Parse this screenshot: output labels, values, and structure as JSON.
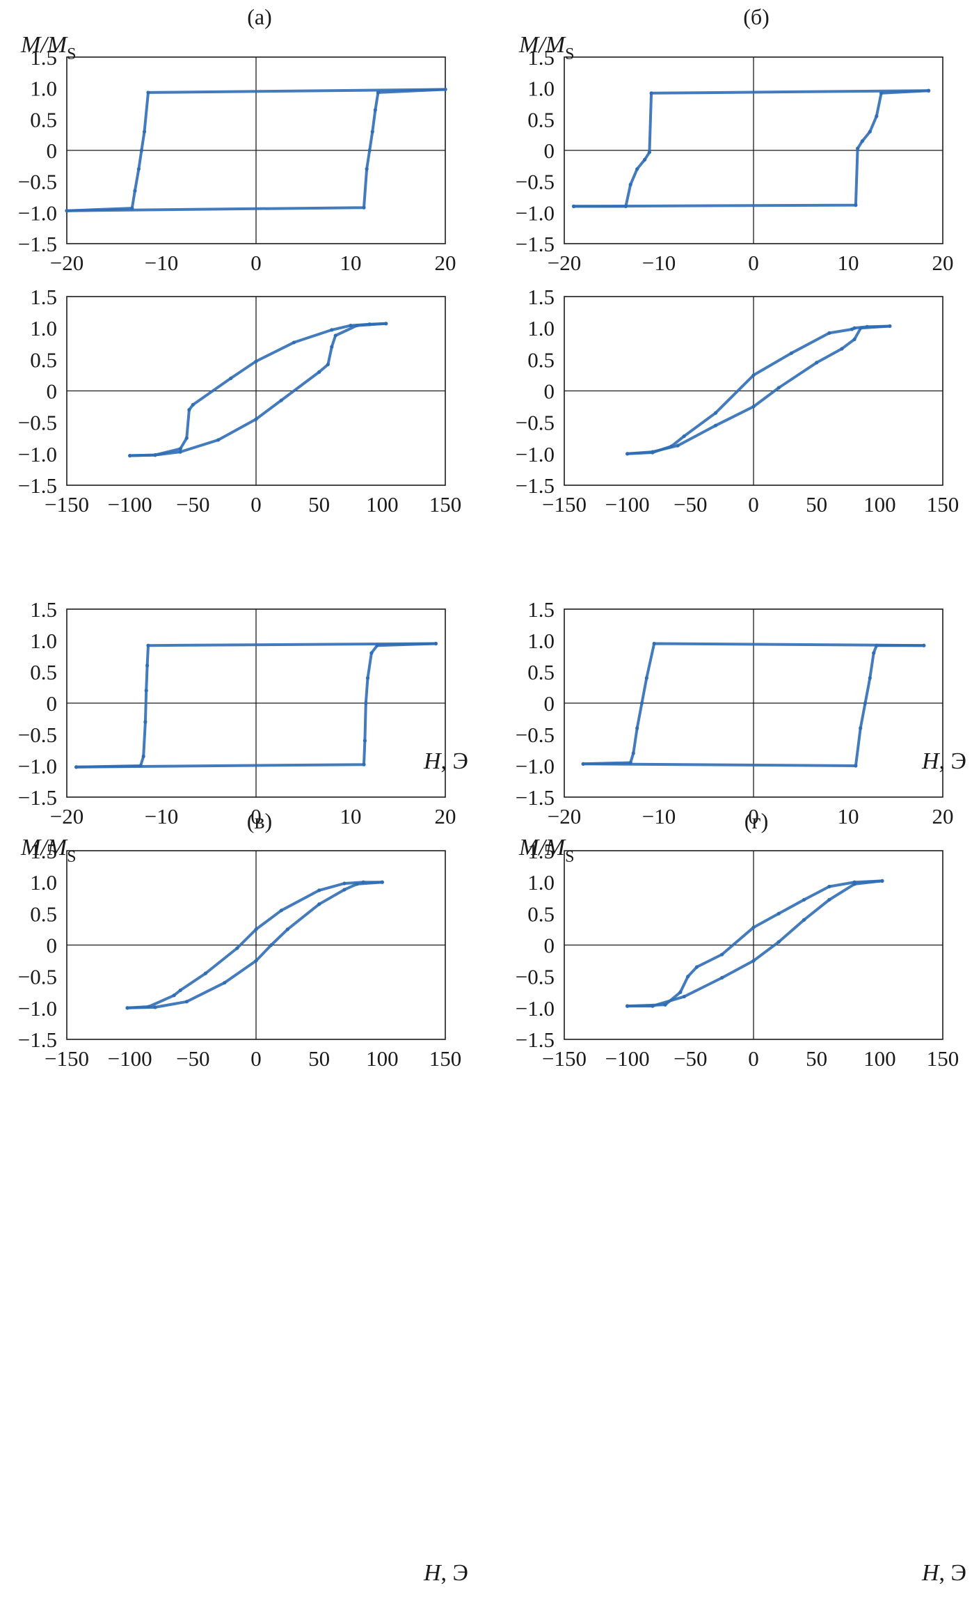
{
  "figure": {
    "panel_labels": [
      "(а)",
      "(б)",
      "(в)",
      "(г)"
    ],
    "y_title_main": "M/M",
    "y_title_sub": "S",
    "x_title_main": "H",
    "x_title_unit": ", Э",
    "series_color": "#2f6db5"
  },
  "chart_data": [
    {
      "id": "a-small",
      "type": "line",
      "panel": "(а)",
      "xlim": [
        -20,
        20
      ],
      "ylim": [
        -1.5,
        1.5
      ],
      "xticks": [
        -20,
        -10,
        0,
        10,
        20
      ],
      "xtick_labels": [
        "−20",
        "−10",
        "0",
        "10",
        "20"
      ],
      "yticks": [
        1.5,
        1.0,
        0.5,
        0,
        -0.5,
        -1.0,
        -1.5
      ],
      "ytick_labels": [
        "1.5",
        "1.0",
        "0.5",
        "0",
        "−0.5",
        "−1.0",
        "−1.5"
      ],
      "grid": false,
      "series": [
        {
          "x": [
            -20,
            -13.1,
            -12.8,
            -12.4,
            -12.1,
            -11.8,
            -11.4,
            20
          ],
          "y": [
            -0.97,
            -0.93,
            -0.65,
            -0.3,
            0.0,
            0.3,
            0.93,
            0.98
          ]
        },
        {
          "x": [
            20,
            12.9,
            12.6,
            12.3,
            12.0,
            11.7,
            11.4,
            -20
          ],
          "y": [
            0.98,
            0.93,
            0.65,
            0.3,
            0.0,
            -0.3,
            -0.92,
            -0.97
          ]
        }
      ]
    },
    {
      "id": "b-small",
      "type": "line",
      "panel": "(б)",
      "xlim": [
        -20,
        20
      ],
      "ylim": [
        -1.5,
        1.5
      ],
      "xticks": [
        -20,
        -10,
        0,
        10,
        20
      ],
      "xtick_labels": [
        "−20",
        "−10",
        "0",
        "10",
        "20"
      ],
      "yticks": [
        1.5,
        1.0,
        0.5,
        0,
        -0.5,
        -1.0,
        -1.5
      ],
      "ytick_labels": [
        "1.5",
        "1.0",
        "0.5",
        "0",
        "−0.5",
        "−1.0",
        "−1.5"
      ],
      "grid": false,
      "series": [
        {
          "x": [
            -19,
            -13.5,
            -13.0,
            -12.3,
            -11.5,
            -11.0,
            -10.8,
            18.5
          ],
          "y": [
            -0.9,
            -0.9,
            -0.55,
            -0.3,
            -0.15,
            -0.03,
            0.92,
            0.96
          ]
        },
        {
          "x": [
            18.5,
            13.5,
            13.0,
            12.3,
            11.5,
            11.0,
            10.8,
            -19
          ],
          "y": [
            0.96,
            0.92,
            0.55,
            0.3,
            0.15,
            0.03,
            -0.88,
            -0.9
          ]
        }
      ]
    },
    {
      "id": "a-large",
      "type": "line",
      "panel": "(а)",
      "xlim": [
        -150,
        150
      ],
      "ylim": [
        -1.5,
        1.5
      ],
      "xticks": [
        -150,
        -100,
        -50,
        0,
        50,
        100,
        150
      ],
      "xtick_labels": [
        "−150",
        "−100",
        "−50",
        "0",
        "50",
        "100",
        "150"
      ],
      "yticks": [
        1.5,
        1.0,
        0.5,
        0,
        -0.5,
        -1.0,
        -1.5
      ],
      "ytick_labels": [
        "1.5",
        "1.0",
        "0.5",
        "0",
        "−0.5",
        "−1.0",
        "−1.5"
      ],
      "grid": false,
      "series": [
        {
          "x": [
            -100,
            -80,
            -60,
            -55,
            -53,
            -50,
            -20,
            0,
            30,
            60,
            75,
            90,
            103
          ],
          "y": [
            -1.03,
            -1.02,
            -0.92,
            -0.75,
            -0.3,
            -0.22,
            0.2,
            0.47,
            0.77,
            0.97,
            1.04,
            1.06,
            1.07
          ]
        },
        {
          "x": [
            103,
            80,
            63,
            60,
            57,
            50,
            20,
            0,
            -30,
            -60,
            -80,
            -100
          ],
          "y": [
            1.07,
            1.04,
            0.88,
            0.7,
            0.42,
            0.3,
            -0.15,
            -0.45,
            -0.78,
            -0.97,
            -1.02,
            -1.03
          ]
        }
      ]
    },
    {
      "id": "b-large",
      "type": "line",
      "panel": "(б)",
      "xlim": [
        -150,
        150
      ],
      "ylim": [
        -1.5,
        1.5
      ],
      "xticks": [
        -150,
        -100,
        -50,
        0,
        50,
        100,
        150
      ],
      "xtick_labels": [
        "−150",
        "−100",
        "−50",
        "0",
        "50",
        "100",
        "150"
      ],
      "yticks": [
        1.5,
        1.0,
        0.5,
        0,
        -0.5,
        -1.0,
        -1.5
      ],
      "ytick_labels": [
        "1.5",
        "1.0",
        "0.5",
        "0",
        "−0.5",
        "−1.0",
        "−1.5"
      ],
      "grid": false,
      "series": [
        {
          "x": [
            -100,
            -80,
            -65,
            -55,
            -30,
            0,
            30,
            60,
            78,
            80,
            90,
            108
          ],
          "y": [
            -1.0,
            -0.98,
            -0.88,
            -0.72,
            -0.35,
            0.25,
            0.6,
            0.92,
            0.98,
            1.0,
            1.02,
            1.03
          ]
        },
        {
          "x": [
            108,
            85,
            80,
            70,
            50,
            20,
            0,
            -30,
            -60,
            -80,
            -100
          ],
          "y": [
            1.03,
            1.0,
            0.82,
            0.67,
            0.45,
            0.05,
            -0.25,
            -0.55,
            -0.87,
            -0.97,
            -1.0
          ]
        }
      ]
    },
    {
      "id": "v-small",
      "type": "line",
      "panel": "(в)",
      "xlim": [
        -20,
        20
      ],
      "ylim": [
        -1.5,
        1.5
      ],
      "xticks": [
        -20,
        -10,
        0,
        10,
        20
      ],
      "xtick_labels": [
        "−20",
        "−10",
        "0",
        "10",
        "20"
      ],
      "yticks": [
        1.5,
        1.0,
        0.5,
        0,
        -0.5,
        -1.0,
        -1.5
      ],
      "ytick_labels": [
        "1.5",
        "1.0",
        "0.5",
        "0",
        "−0.5",
        "−1.0",
        "−1.5"
      ],
      "grid": false,
      "series": [
        {
          "x": [
            -19,
            -12.2,
            -11.9,
            -11.7,
            -11.6,
            -11.5,
            -11.4,
            19
          ],
          "y": [
            -1.02,
            -1.0,
            -0.85,
            -0.3,
            0.2,
            0.6,
            0.92,
            0.95
          ]
        },
        {
          "x": [
            19,
            12.8,
            12.2,
            11.8,
            11.6,
            11.5,
            11.4,
            -19
          ],
          "y": [
            0.95,
            0.92,
            0.8,
            0.4,
            0.0,
            -0.6,
            -0.98,
            -1.02
          ]
        }
      ]
    },
    {
      "id": "g-small",
      "type": "line",
      "panel": "(г)",
      "xlim": [
        -20,
        20
      ],
      "ylim": [
        -1.5,
        1.5
      ],
      "xticks": [
        -20,
        -10,
        0,
        10,
        20
      ],
      "xtick_labels": [
        "−20",
        "−10",
        "0",
        "10",
        "20"
      ],
      "yticks": [
        1.5,
        1.0,
        0.5,
        0,
        -0.5,
        -1.0,
        -1.5
      ],
      "ytick_labels": [
        "1.5",
        "1.0",
        "0.5",
        "0",
        "−0.5",
        "−1.0",
        "−1.5"
      ],
      "grid": false,
      "series": [
        {
          "x": [
            -18,
            -13,
            -12.7,
            -12.3,
            -11.8,
            -11.3,
            -10.5,
            18
          ],
          "y": [
            -0.97,
            -0.95,
            -0.8,
            -0.4,
            0.0,
            0.4,
            0.95,
            0.92
          ]
        },
        {
          "x": [
            18,
            13,
            12.7,
            12.3,
            11.8,
            11.3,
            10.8,
            -18
          ],
          "y": [
            0.92,
            0.92,
            0.8,
            0.4,
            0.0,
            -0.4,
            -1.0,
            -0.97
          ]
        }
      ]
    },
    {
      "id": "v-large",
      "type": "line",
      "panel": "(в)",
      "xlim": [
        -150,
        150
      ],
      "ylim": [
        -1.5,
        1.5
      ],
      "xticks": [
        -150,
        -100,
        -50,
        0,
        50,
        100,
        150
      ],
      "xtick_labels": [
        "−150",
        "−100",
        "−50",
        "0",
        "50",
        "100",
        "150"
      ],
      "yticks": [
        1.5,
        1.0,
        0.5,
        0,
        -0.5,
        -1.0,
        -1.5
      ],
      "ytick_labels": [
        "1.5",
        "1.0",
        "0.5",
        "0",
        "−0.5",
        "−1.0",
        "−1.5"
      ],
      "grid": false,
      "series": [
        {
          "x": [
            -102,
            -85,
            -65,
            -60,
            -40,
            -15,
            0,
            20,
            50,
            70,
            85,
            100
          ],
          "y": [
            -1.0,
            -0.98,
            -0.8,
            -0.72,
            -0.45,
            -0.05,
            0.25,
            0.55,
            0.87,
            0.98,
            1.0,
            1.0
          ]
        },
        {
          "x": [
            100,
            80,
            70,
            50,
            25,
            12,
            0,
            -25,
            -55,
            -80,
            -102
          ],
          "y": [
            1.0,
            0.97,
            0.88,
            0.65,
            0.25,
            0.0,
            -0.25,
            -0.6,
            -0.9,
            -0.99,
            -1.0
          ]
        }
      ]
    },
    {
      "id": "g-large",
      "type": "line",
      "panel": "(г)",
      "xlim": [
        -150,
        150
      ],
      "ylim": [
        -1.5,
        1.5
      ],
      "xticks": [
        -150,
        -100,
        -50,
        0,
        50,
        100,
        150
      ],
      "xtick_labels": [
        "−150",
        "−100",
        "−50",
        "0",
        "50",
        "100",
        "150"
      ],
      "yticks": [
        1.5,
        1.0,
        0.5,
        0,
        -0.5,
        -1.0,
        -1.5
      ],
      "ytick_labels": [
        "1.5",
        "1.0",
        "0.5",
        "0",
        "−0.5",
        "−1.0",
        "−1.5"
      ],
      "grid": false,
      "series": [
        {
          "x": [
            -100,
            -70,
            -58,
            -52,
            -45,
            -25,
            0,
            20,
            40,
            60,
            80,
            102
          ],
          "y": [
            -0.97,
            -0.95,
            -0.75,
            -0.5,
            -0.35,
            -0.15,
            0.28,
            0.5,
            0.72,
            0.93,
            1.0,
            1.02
          ]
        },
        {
          "x": [
            102,
            80,
            60,
            40,
            20,
            0,
            -25,
            -55,
            -80,
            -100
          ],
          "y": [
            1.02,
            0.97,
            0.72,
            0.4,
            0.05,
            -0.25,
            -0.52,
            -0.82,
            -0.97,
            -0.97
          ]
        }
      ]
    }
  ]
}
